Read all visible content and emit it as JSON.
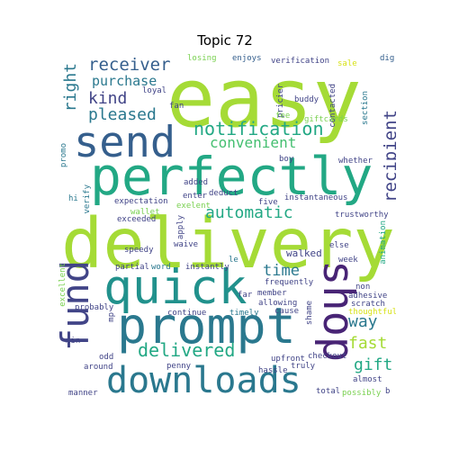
{
  "title": "Topic 72",
  "words": {
    "easy": "easy",
    "delivery": "delivery",
    "perfectly": "perfectly",
    "send": "send",
    "quick": "quick",
    "prompt": "prompt",
    "downloads": "downloads",
    "fund": "fund",
    "shop": "shop",
    "notification": "notification",
    "receiver": "receiver",
    "purchase": "purchase",
    "pleased": "pleased",
    "kind": "kind",
    "right": "right",
    "convenient": "convenient",
    "recipient": "recipient",
    "automatic": "automatic",
    "time": "time",
    "way": "way",
    "fast": "fast",
    "gift": "gift",
    "delivered": "delivered",
    "losing": "losing",
    "enjoys": "enjoys",
    "verification": "verification",
    "sale": "sale",
    "dig": "dig",
    "loyal": "loyal",
    "fan": "fan",
    "pricier": "pricier",
    "fee": "fee",
    "buddy": "buddy",
    "contacted": "contacted",
    "section": "section",
    "giftcards": "giftcards",
    "boy": "boy",
    "whether": "whether",
    "promo": "promo",
    "added": "added",
    "deduct": "deduct",
    "five": "five",
    "instantaneous": "instantaneous",
    "verify": "verify",
    "expectation": "expectation",
    "enter": "enter",
    "exelent": "exelent",
    "trustworthy": "trustworthy",
    "hi": "hi",
    "wallet": "wallet",
    "exceeded": "exceeded",
    "apply": "apply",
    "waive": "waive",
    "speedy": "speedy",
    "walked": "walked",
    "else": "else",
    "animation": "animation",
    "week": "week",
    "partial": "partial",
    "word": "word",
    "instantly": "instantly",
    "le": "le",
    "frequently": "frequently",
    "non": "non",
    "adhesive": "adhesive",
    "scratch": "scratch",
    "member": "member",
    "excellent": "excellent",
    "continue": "continue",
    "allowing": "allowing",
    "far": "far",
    "mp": "mp",
    "timely": "timely",
    "shame": "shame",
    "thoughtful": "thoughtful",
    "probably": "probably",
    "cause": "cause",
    "min": "min",
    "odd": "odd",
    "checkout": "checkout",
    "upfront": "upfront",
    "almost": "almost",
    "around": "around",
    "penny": "penny",
    "hassle": "hassle",
    "truly": "truly",
    "total": "total",
    "possibly": "possibly",
    "manner": "manner",
    "b": "b"
  },
  "colors": {
    "yellow_green": "#a5db36",
    "light_green": "#7ad151",
    "green": "#44bf70",
    "teal_green": "#22a884",
    "teal": "#21918c",
    "blue_teal": "#2a788e",
    "blue": "#355f8d",
    "dark_blue": "#414487",
    "purple": "#482475",
    "dark_purple": "#440154",
    "yellow": "#d8e219"
  }
}
